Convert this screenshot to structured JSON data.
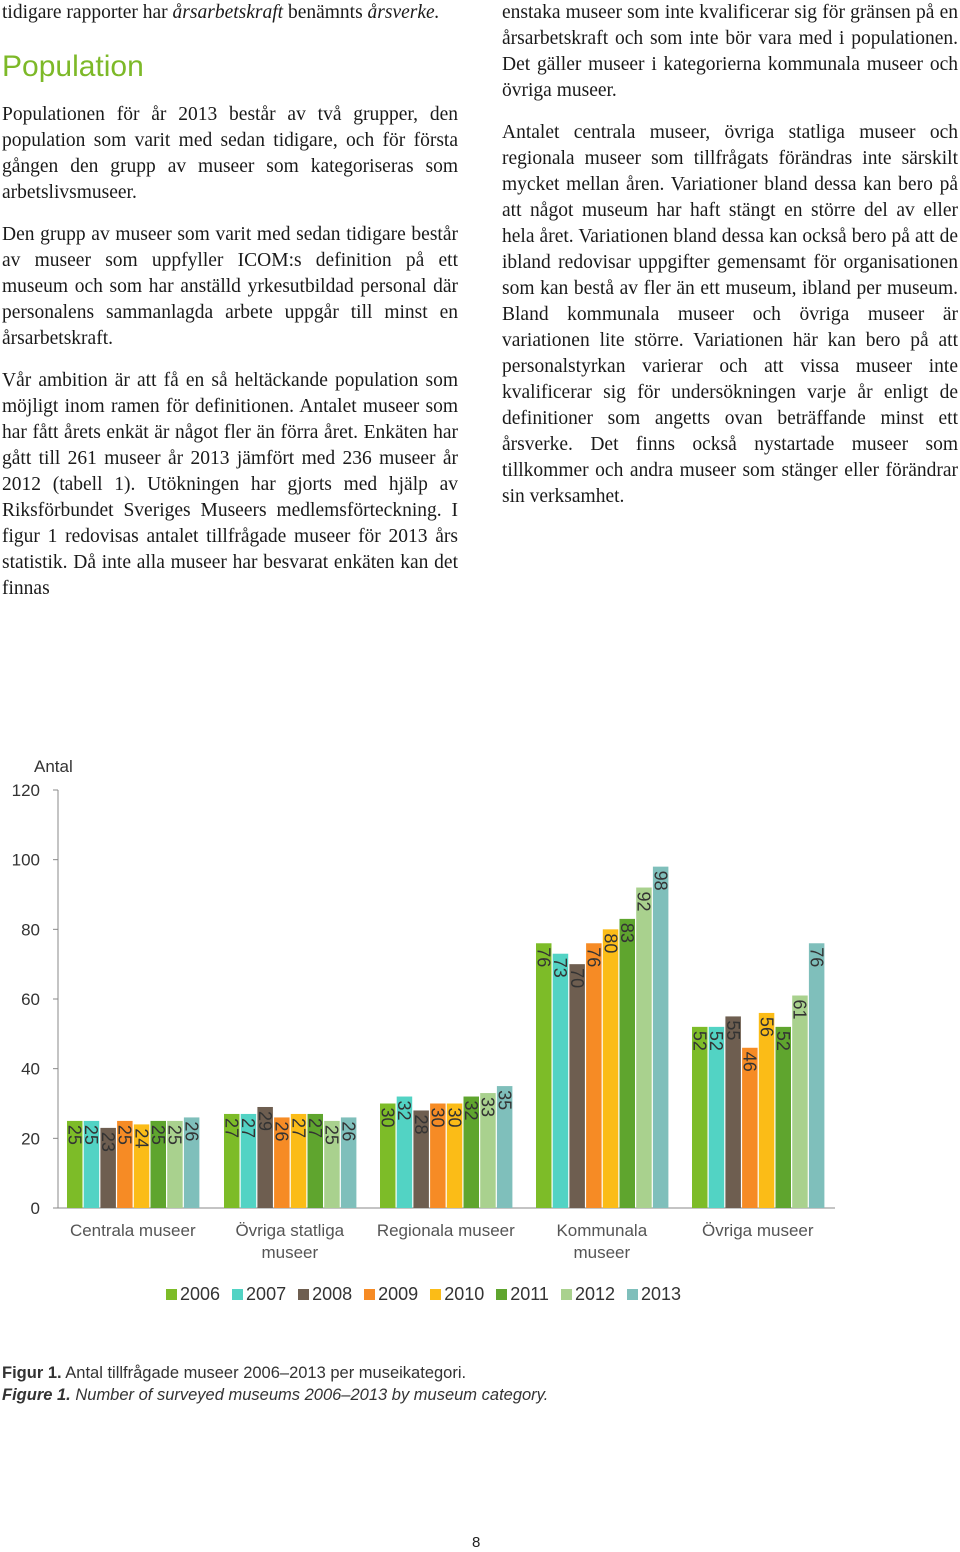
{
  "left_column": {
    "intro": "tidigare rapporter har årsarbetskraft benämnts årsverke.",
    "intro_plain": "tidigare rapporter har ",
    "intro_em": "årsarbetskraft",
    "intro_mid": " benämnts ",
    "intro_em2": "årsverke.",
    "heading": "Population",
    "p1": "Populationen för år 2013 består av två grupper, den population som varit med sedan tidigare, och för första gången den grupp av museer som kategoriseras som arbetslivsmuseer.",
    "p2": "Den grupp av museer som varit med sedan tidigare består av museer som uppfyller ICOM:s definition på ett museum och som har anställd yrkesutbildad personal där personalens sammanlagda arbete uppgår till minst en årsarbetskraft.",
    "p3": "Vår ambition är att få en så heltäckande population som möjligt inom ramen för definitionen. Antalet museer som har fått årets enkät är något fler än förra året. Enkäten har gått till 261 museer år 2013 jämfört med 236 museer år 2012 (tabell 1). Utökningen har gjorts med hjälp av Riksförbundet Sveriges Museers medlemsförteckning. I figur 1 redovisas antalet tillfrågade museer för 2013 års statistik. Då inte alla museer har besvarat enkäten kan det finnas"
  },
  "right_column": {
    "p1": "enstaka museer som inte kvalificerar sig för gränsen på en årsarbetskraft och som inte bör vara med i populationen. Det gäller museer i kategorierna kommunala museer och övriga museer.",
    "p2": "Antalet centrala museer, övriga statliga museer och regionala museer som tillfrågats förändras inte särskilt mycket mellan åren. Variationer bland dessa kan bero på att något museum har haft stängt en större del av eller hela året. Variationen bland dessa kan också bero på att de ibland redovisar uppgifter gemensamt för organisationen som kan bestå av fler än ett museum, ibland per museum. Bland kommunala museer och övriga museer är variationen lite större. Variationen här kan bero på att personalstyrkan varierar och att vissa museer inte kvalificerar sig för undersökningen varje år enligt de definitioner som angetts ovan beträffande minst ett årsverke. Det finns också nystartade museer som tillkommer och andra museer som stänger eller förändrar sin verksamhet."
  },
  "chart_data": {
    "type": "bar",
    "ylabel": "Antal",
    "ylim": [
      0,
      120
    ],
    "yticks": [
      "0",
      "20",
      "40",
      "60",
      "80",
      "100",
      "120"
    ],
    "categories": [
      "Centrala museer",
      "Övriga statliga museer",
      "Regionala museer",
      "Kommunala museer",
      "Övriga museer"
    ],
    "category_lines": [
      [
        "Centrala museer"
      ],
      [
        "Övriga statliga",
        "museer"
      ],
      [
        "Regionala museer"
      ],
      [
        "Kommunala",
        "museer"
      ],
      [
        "Övriga museer"
      ]
    ],
    "legend_placement": "bottom",
    "grid": false,
    "data_labels": true,
    "series": [
      {
        "name": "2006",
        "color": "#7dbc28",
        "values": [
          25,
          27,
          30,
          76,
          52
        ]
      },
      {
        "name": "2007",
        "color": "#52d3c4",
        "values": [
          25,
          27,
          32,
          73,
          52
        ]
      },
      {
        "name": "2008",
        "color": "#6e5e50",
        "values": [
          23,
          29,
          28,
          70,
          55
        ]
      },
      {
        "name": "2009",
        "color": "#f68b25",
        "values": [
          25,
          26,
          30,
          76,
          46
        ]
      },
      {
        "name": "2010",
        "color": "#fbbc17",
        "values": [
          24,
          27,
          30,
          80,
          56
        ]
      },
      {
        "name": "2011",
        "color": "#5fa52e",
        "values": [
          25,
          27,
          32,
          83,
          52
        ]
      },
      {
        "name": "2012",
        "color": "#a9d18e",
        "values": [
          25,
          25,
          33,
          92,
          61
        ]
      },
      {
        "name": "2013",
        "color": "#7fbfbb",
        "values": [
          26,
          26,
          35,
          98,
          76
        ]
      }
    ]
  },
  "caption": {
    "sv_label": "Figur 1.",
    "sv_text": " Antal tillfrågade museer 2006–2013 per museikategori.",
    "en_label": "Figure 1.",
    "en_text": " Number of surveyed museums 2006–2013 by museum category."
  },
  "page_number": "8"
}
